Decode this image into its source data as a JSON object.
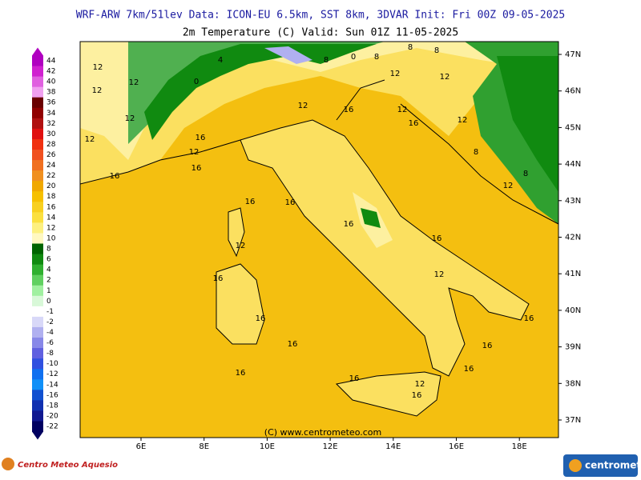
{
  "header": {
    "line1": "WRF-ARW 7km/51lev   Data: ICON-EU 6.5km, SST 8km, 3DVAR   Init: Fri 00Z 09-05-2025",
    "line2": "2m Temperature (C)  Valid: Sun 01Z 11-05-2025"
  },
  "colorbar": {
    "labels": [
      "44",
      "42",
      "40",
      "38",
      "36",
      "34",
      "32",
      "30",
      "28",
      "26",
      "24",
      "22",
      "20",
      "18",
      "16",
      "14",
      "12",
      "10",
      "8",
      "6",
      "4",
      "2",
      "1",
      "0",
      "-1",
      "-2",
      "-4",
      "-6",
      "-8",
      "-10",
      "-12",
      "-14",
      "-16",
      "-18",
      "-20",
      "-22"
    ],
    "colors": [
      "#b000c0",
      "#d020d0",
      "#e060e0",
      "#f0a0f0",
      "#6a0000",
      "#900000",
      "#b01010",
      "#e01010",
      "#f03010",
      "#f05020",
      "#f07020",
      "#f09020",
      "#f0a800",
      "#f6c000",
      "#f8d020",
      "#fbe040",
      "#fdf080",
      "#fff8c0",
      "#006400",
      "#108a10",
      "#30b030",
      "#60d060",
      "#a0f0a0",
      "#d8f8d8",
      "#ffffff",
      "#d8d8f8",
      "#b0b0f0",
      "#8888e8",
      "#6060e0",
      "#3050e0",
      "#1070f0",
      "#1090f8",
      "#1050d0",
      "#1030b0",
      "#101890",
      "#000060"
    ]
  },
  "map": {
    "lon_ticks": [
      "6E",
      "8E",
      "10E",
      "12E",
      "14E",
      "16E",
      "18E"
    ],
    "lat_ticks": [
      "47N",
      "46N",
      "45N",
      "44N",
      "43N",
      "42N",
      "41N",
      "40N",
      "39N",
      "38N",
      "37N"
    ],
    "contour_labels": [
      "12",
      "12",
      "12",
      "12",
      "12",
      "4",
      "0",
      "8",
      "8",
      "0",
      "8",
      "8",
      "12",
      "12",
      "12",
      "12",
      "16",
      "12",
      "16",
      "16",
      "12",
      "16",
      "16",
      "16",
      "16",
      "16",
      "12",
      "16",
      "16",
      "16",
      "16",
      "16",
      "16",
      "12",
      "16",
      "16",
      "16",
      "8",
      "8",
      "12",
      "12",
      "16"
    ],
    "copyright": "(C) www.centrometeo.com"
  },
  "footer": {
    "left_logo": "Centro Meteo Aquesio",
    "right_logo": "centrometeo"
  }
}
